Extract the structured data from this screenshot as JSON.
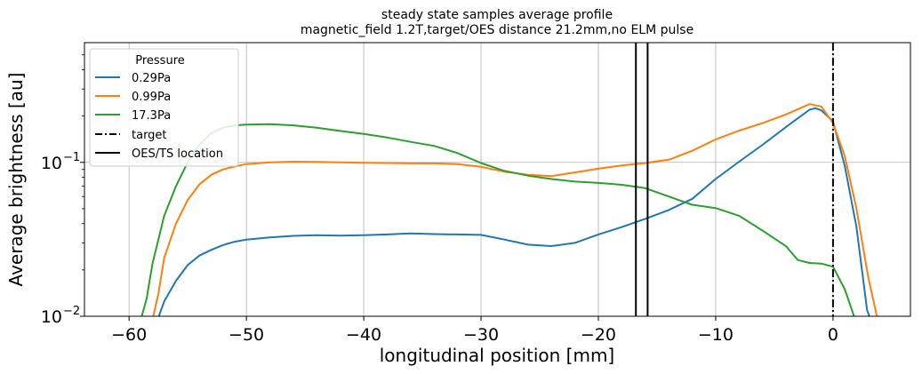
{
  "chart_data": {
    "type": "line",
    "title": "steady state samples average profile",
    "subtitle": "magnetic_field 1.2T,target/OES distance 21.2mm,no ELM pulse",
    "xlabel": "longitudinal position [mm]",
    "ylabel": "Average brightness [au]",
    "xlim": [
      -63.8,
      6.6
    ],
    "ylim": [
      0.01,
      0.6
    ],
    "yscale": "log",
    "grid": true,
    "x_ticks": [
      {
        "value": -60,
        "label": "−60"
      },
      {
        "value": -50,
        "label": "−50"
      },
      {
        "value": -40,
        "label": "−40"
      },
      {
        "value": -30,
        "label": "−30"
      },
      {
        "value": -20,
        "label": "−20"
      },
      {
        "value": -10,
        "label": "−10"
      },
      {
        "value": 0,
        "label": "0"
      }
    ],
    "y_ticks": [
      {
        "value": 0.01,
        "base": "10",
        "exp": "−2"
      },
      {
        "value": 0.1,
        "base": "10",
        "exp": "−1"
      }
    ],
    "legend": {
      "title": "Pressure",
      "placement": "upper-left"
    },
    "series": [
      {
        "name": "0.29Pa",
        "color": "#1f77b4",
        "points": [
          [
            -57.5,
            0.0098
          ],
          [
            -57,
            0.0125
          ],
          [
            -56,
            0.017
          ],
          [
            -55,
            0.0215
          ],
          [
            -54,
            0.0248
          ],
          [
            -53,
            0.027
          ],
          [
            -52,
            0.029
          ],
          [
            -51,
            0.0305
          ],
          [
            -50,
            0.0315
          ],
          [
            -48,
            0.0325
          ],
          [
            -46,
            0.0333
          ],
          [
            -44,
            0.0336
          ],
          [
            -42,
            0.0334
          ],
          [
            -40,
            0.0336
          ],
          [
            -38,
            0.034
          ],
          [
            -36,
            0.0345
          ],
          [
            -34,
            0.0342
          ],
          [
            -32,
            0.034
          ],
          [
            -30,
            0.0338
          ],
          [
            -28,
            0.0315
          ],
          [
            -26,
            0.0292
          ],
          [
            -24,
            0.0286
          ],
          [
            -22,
            0.03
          ],
          [
            -20,
            0.034
          ],
          [
            -18,
            0.038
          ],
          [
            -16,
            0.043
          ],
          [
            -14,
            0.049
          ],
          [
            -12,
            0.058
          ],
          [
            -10,
            0.078
          ],
          [
            -8,
            0.101
          ],
          [
            -6,
            0.13
          ],
          [
            -4,
            0.17
          ],
          [
            -2,
            0.22
          ],
          [
            -1.5,
            0.225
          ],
          [
            -1,
            0.218
          ],
          [
            0,
            0.185
          ],
          [
            1,
            0.095
          ],
          [
            2,
            0.038
          ],
          [
            2.9,
            0.011
          ],
          [
            3.2,
            0.0095
          ]
        ]
      },
      {
        "name": "0.99Pa",
        "color": "#ff7f0e",
        "points": [
          [
            -58,
            0.0095
          ],
          [
            -57.5,
            0.014
          ],
          [
            -57,
            0.024
          ],
          [
            -56,
            0.04
          ],
          [
            -55,
            0.057
          ],
          [
            -54,
            0.072
          ],
          [
            -53,
            0.083
          ],
          [
            -52,
            0.09
          ],
          [
            -51,
            0.094
          ],
          [
            -50,
            0.0975
          ],
          [
            -48,
            0.1
          ],
          [
            -46,
            0.101
          ],
          [
            -44,
            0.1008
          ],
          [
            -42,
            0.1
          ],
          [
            -40,
            0.0995
          ],
          [
            -38,
            0.099
          ],
          [
            -36,
            0.0985
          ],
          [
            -34,
            0.0985
          ],
          [
            -32,
            0.0975
          ],
          [
            -30,
            0.0935
          ],
          [
            -28,
            0.087
          ],
          [
            -26,
            0.083
          ],
          [
            -24,
            0.0815
          ],
          [
            -22,
            0.086
          ],
          [
            -20,
            0.091
          ],
          [
            -18,
            0.0955
          ],
          [
            -16,
            0.099
          ],
          [
            -14,
            0.104
          ],
          [
            -12,
            0.119
          ],
          [
            -10,
            0.141
          ],
          [
            -8,
            0.161
          ],
          [
            -6,
            0.18
          ],
          [
            -4,
            0.205
          ],
          [
            -2,
            0.239
          ],
          [
            -1,
            0.231
          ],
          [
            0,
            0.18
          ],
          [
            1,
            0.11
          ],
          [
            2,
            0.05
          ],
          [
            3,
            0.018
          ],
          [
            3.8,
            0.0095
          ]
        ]
      },
      {
        "name": "17.3Pa",
        "color": "#2ca02c",
        "points": [
          [
            -59,
            0.0095
          ],
          [
            -58.5,
            0.013
          ],
          [
            -58,
            0.022
          ],
          [
            -57,
            0.045
          ],
          [
            -56,
            0.07
          ],
          [
            -55,
            0.1
          ],
          [
            -54,
            0.13
          ],
          [
            -53,
            0.155
          ],
          [
            -52,
            0.168
          ],
          [
            -51,
            0.174
          ],
          [
            -50,
            0.176
          ],
          [
            -48,
            0.177
          ],
          [
            -46,
            0.174
          ],
          [
            -44,
            0.168
          ],
          [
            -42,
            0.16
          ],
          [
            -40,
            0.153
          ],
          [
            -38,
            0.145
          ],
          [
            -36,
            0.136
          ],
          [
            -34,
            0.128
          ],
          [
            -32,
            0.115
          ],
          [
            -30,
            0.099
          ],
          [
            -28,
            0.088
          ],
          [
            -26,
            0.082
          ],
          [
            -24,
            0.078
          ],
          [
            -22,
            0.075
          ],
          [
            -20,
            0.0735
          ],
          [
            -18,
            0.0715
          ],
          [
            -16,
            0.068
          ],
          [
            -14,
            0.06
          ],
          [
            -12,
            0.053
          ],
          [
            -10,
            0.0505
          ],
          [
            -8,
            0.045
          ],
          [
            -6,
            0.036
          ],
          [
            -4,
            0.0285
          ],
          [
            -3,
            0.0232
          ],
          [
            -2,
            0.0222
          ],
          [
            -1,
            0.022
          ],
          [
            0,
            0.021
          ],
          [
            1,
            0.015
          ],
          [
            2,
            0.009
          ]
        ]
      }
    ],
    "vlines": [
      {
        "name": "target",
        "x": 0,
        "style": "dashdot",
        "color": "#000000"
      },
      {
        "name": "OES/TS location",
        "x": -16.8,
        "style": "solid",
        "color": "#000000",
        "in_legend": true
      },
      {
        "name": "OES/TS location",
        "x": -15.8,
        "style": "solid",
        "color": "#000000",
        "in_legend": false
      }
    ]
  }
}
